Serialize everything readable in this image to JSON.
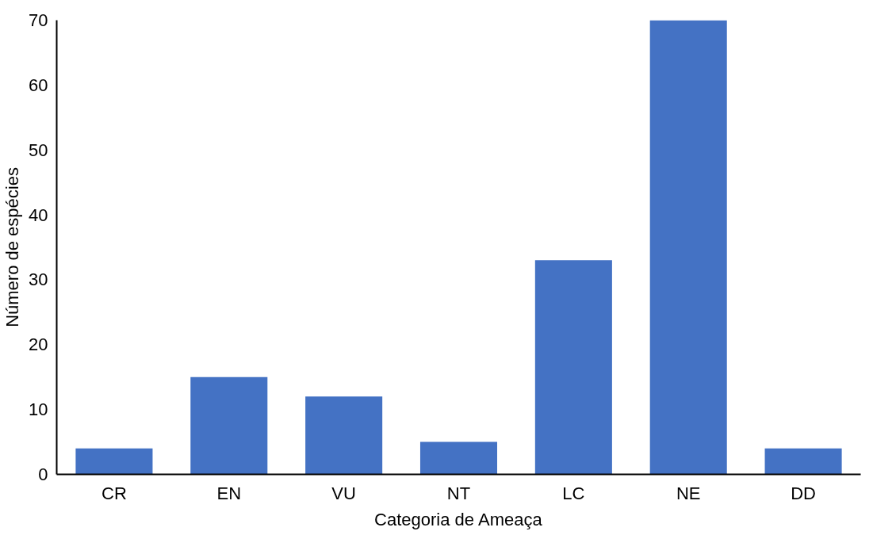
{
  "chart_data": {
    "type": "bar",
    "xlabel": "Categoria de Ameaça",
    "ylabel": "Número de espécies",
    "categories": [
      "CR",
      "EN",
      "VU",
      "NT",
      "LC",
      "NE",
      "DD"
    ],
    "values": [
      4,
      15,
      12,
      5,
      33,
      70,
      4
    ],
    "color": "#4472c4",
    "ylim": [
      0,
      70
    ],
    "yticks": [
      0,
      10,
      20,
      30,
      40,
      50,
      60,
      70
    ],
    "grid": false
  }
}
